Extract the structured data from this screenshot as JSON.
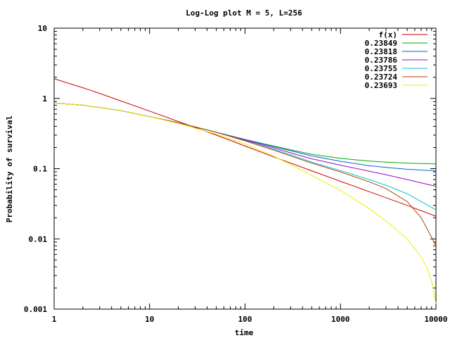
{
  "chart_data": {
    "type": "line",
    "title": "Log-Log plot M = 5, L=256",
    "xlabel": "time",
    "ylabel": "Probability of survival",
    "x_scale": "log",
    "y_scale": "log",
    "xlim": [
      1,
      10000
    ],
    "ylim": [
      0.001,
      10
    ],
    "x_ticks": [
      1,
      10,
      100,
      1000,
      10000
    ],
    "x_tick_labels": [
      "1",
      "10",
      "100",
      "1000",
      "10000"
    ],
    "y_ticks": [
      0.001,
      0.01,
      0.1,
      1,
      10
    ],
    "y_tick_labels": [
      "0.001",
      "0.01",
      "0.1",
      "1",
      "10"
    ],
    "grid": false,
    "legend_position": "top-right",
    "series": [
      {
        "name": "f(x)",
        "color": "#cc0000",
        "x": [
          1,
          2,
          3,
          5,
          10,
          20,
          50,
          100,
          200,
          500,
          1000,
          2000,
          5000,
          10000
        ],
        "y": [
          1.9,
          1.42,
          1.18,
          0.92,
          0.66,
          0.47,
          0.3,
          0.21,
          0.147,
          0.093,
          0.066,
          0.047,
          0.03,
          0.021
        ]
      },
      {
        "name": "0.23849",
        "color": "#00aa00",
        "x": [
          1,
          2,
          3,
          5,
          10,
          20,
          50,
          100,
          200,
          300,
          500,
          1000,
          2000,
          3000,
          5000,
          10000
        ],
        "y": [
          0.86,
          0.8,
          0.74,
          0.67,
          0.55,
          0.45,
          0.33,
          0.26,
          0.21,
          0.185,
          0.16,
          0.14,
          0.128,
          0.124,
          0.12,
          0.117
        ]
      },
      {
        "name": "0.23818",
        "color": "#0066cc",
        "x": [
          1,
          2,
          3,
          5,
          10,
          20,
          50,
          100,
          200,
          300,
          500,
          1000,
          2000,
          3000,
          5000,
          10000
        ],
        "y": [
          0.86,
          0.8,
          0.74,
          0.67,
          0.55,
          0.45,
          0.33,
          0.26,
          0.205,
          0.18,
          0.152,
          0.127,
          0.11,
          0.104,
          0.098,
          0.093
        ]
      },
      {
        "name": "0.23786",
        "color": "#aa00cc",
        "x": [
          1,
          2,
          3,
          5,
          10,
          20,
          50,
          100,
          200,
          300,
          500,
          1000,
          2000,
          3000,
          5000,
          10000
        ],
        "y": [
          0.86,
          0.8,
          0.74,
          0.67,
          0.55,
          0.45,
          0.33,
          0.255,
          0.197,
          0.168,
          0.138,
          0.112,
          0.092,
          0.082,
          0.07,
          0.056
        ]
      },
      {
        "name": "0.23755",
        "color": "#00cccc",
        "x": [
          1,
          2,
          3,
          5,
          10,
          20,
          50,
          100,
          200,
          300,
          500,
          1000,
          2000,
          3000,
          5000,
          10000
        ],
        "y": [
          0.86,
          0.8,
          0.74,
          0.67,
          0.55,
          0.45,
          0.33,
          0.25,
          0.188,
          0.158,
          0.124,
          0.094,
          0.07,
          0.058,
          0.044,
          0.026
        ]
      },
      {
        "name": "0.23724",
        "color": "#aa4400",
        "x": [
          1,
          2,
          3,
          5,
          10,
          20,
          50,
          100,
          200,
          300,
          500,
          1000,
          2000,
          3000,
          5000,
          7000,
          10000
        ],
        "y": [
          0.86,
          0.8,
          0.74,
          0.67,
          0.55,
          0.45,
          0.33,
          0.248,
          0.184,
          0.152,
          0.12,
          0.09,
          0.065,
          0.052,
          0.034,
          0.02,
          0.008
        ]
      },
      {
        "name": "0.23693",
        "color": "#eeee00",
        "x": [
          1,
          2,
          3,
          5,
          10,
          20,
          50,
          100,
          200,
          300,
          500,
          1000,
          2000,
          3000,
          5000,
          7000,
          8000,
          9000,
          10000
        ],
        "y": [
          0.86,
          0.8,
          0.74,
          0.67,
          0.55,
          0.44,
          0.31,
          0.225,
          0.15,
          0.115,
          0.08,
          0.049,
          0.027,
          0.018,
          0.01,
          0.0055,
          0.004,
          0.0025,
          0.0012
        ]
      }
    ]
  }
}
